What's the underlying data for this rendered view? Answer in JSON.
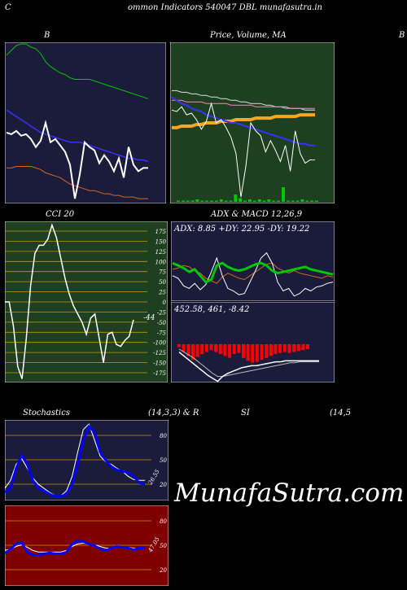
{
  "page": {
    "top_left": "C",
    "title": "ommon  Indicators 540047 DBL  munafasutra.in",
    "watermark": "MunafaSutra.com"
  },
  "chart_data": [
    {
      "id": "bb",
      "type": "line",
      "title": "B",
      "colors": {
        "bg": "#1b1b3c",
        "upper": "#00c800",
        "middle": "#3333ff",
        "lower": "#d2691e",
        "price": "#ffffff"
      },
      "series": [
        {
          "values": [
            92,
            95,
            98,
            99,
            99,
            97,
            96,
            93,
            88,
            85,
            83,
            81,
            80,
            78,
            77,
            77,
            77,
            77,
            76,
            75,
            74,
            73,
            72,
            71,
            70,
            69,
            68,
            67,
            66,
            65
          ]
        },
        {
          "values": [
            58,
            56,
            54,
            52,
            50,
            48,
            46,
            44,
            43,
            42,
            41,
            40,
            39,
            38,
            38,
            38,
            37,
            36,
            35,
            34,
            33,
            32,
            31,
            30,
            29,
            28,
            28,
            27,
            27,
            26
          ]
        },
        {
          "values": [
            22,
            22,
            23,
            23,
            23,
            23,
            22,
            21,
            19,
            18,
            17,
            16,
            14,
            12,
            11,
            10,
            9,
            8,
            8,
            7,
            6,
            6,
            5,
            5,
            4,
            4,
            4,
            3,
            3,
            3
          ]
        },
        {
          "values": [
            44,
            43,
            45,
            42,
            43,
            40,
            35,
            39,
            50,
            38,
            40,
            36,
            32,
            24,
            3,
            18,
            38,
            35,
            33,
            25,
            30,
            26,
            20,
            28,
            16,
            35,
            24,
            20,
            22,
            22
          ]
        }
      ]
    },
    {
      "id": "price",
      "type": "line",
      "title": "Price,  Volume,  MA",
      "colors": {
        "bg": "#1f4020",
        "price": "#ffffff",
        "ma_blue": "#3333ff",
        "ma_orange": "#f5a623",
        "ma_white": "#dddddd",
        "ma_pink": "#ff80c0",
        "volume": "#00c800"
      },
      "series": [
        {
          "values": [
            58,
            57,
            60,
            55,
            56,
            52,
            46,
            51,
            62,
            50,
            52,
            47,
            41,
            31,
            4,
            23,
            50,
            45,
            42,
            32,
            39,
            33,
            26,
            36,
            20,
            45,
            31,
            25,
            27,
            27
          ]
        },
        {
          "values": [
            66,
            64,
            62,
            61,
            59,
            58,
            57,
            55,
            54,
            53,
            52,
            51,
            50,
            50,
            49,
            48,
            47,
            46,
            45,
            44,
            43,
            42,
            41,
            40,
            39,
            38,
            37,
            37,
            36,
            36
          ]
        },
        {
          "values": [
            47,
            47,
            48,
            48,
            48,
            49,
            49,
            50,
            50,
            50,
            51,
            51,
            51,
            52,
            52,
            52,
            52,
            53,
            53,
            53,
            53,
            54,
            54,
            54,
            54,
            54,
            55,
            55,
            55,
            55
          ]
        },
        {
          "values": [
            70,
            70,
            69,
            69,
            68,
            68,
            67,
            67,
            66,
            66,
            65,
            65,
            64,
            64,
            63,
            63,
            62,
            62,
            62,
            61,
            61,
            60,
            60,
            60,
            59,
            59,
            59,
            58,
            58,
            58
          ]
        },
        {
          "values": [
            64,
            64,
            64,
            63,
            63,
            63,
            63,
            62,
            62,
            62,
            62,
            62,
            61,
            61,
            61,
            61,
            61,
            60,
            60,
            60,
            60,
            60,
            60,
            59,
            59,
            59,
            59,
            59,
            59,
            59
          ]
        }
      ],
      "volume": [
        1,
        1,
        1,
        1,
        2,
        1,
        1,
        1,
        1,
        2,
        1,
        1,
        6,
        3,
        1,
        2,
        1,
        2,
        1,
        2,
        1,
        1,
        12,
        1,
        1,
        1,
        2,
        1,
        1,
        1
      ]
    },
    {
      "id": "cci",
      "type": "line",
      "title": "CCI 20",
      "last_value": "-44",
      "colors": {
        "bg": "#1f4020",
        "grid": "#c89600",
        "line": "#ffffff"
      },
      "y_ticks": [
        175,
        150,
        125,
        100,
        75,
        50,
        25,
        0,
        -25,
        -50,
        -75,
        -100,
        -125,
        -150,
        -175
      ],
      "ylim": [
        -175,
        175
      ],
      "values": [
        0,
        0,
        -60,
        -160,
        -190,
        -90,
        40,
        120,
        140,
        140,
        155,
        190,
        160,
        110,
        60,
        20,
        -10,
        -30,
        -50,
        -80,
        -40,
        -30,
        -90,
        -150,
        -80,
        -75,
        -105,
        -110,
        -95,
        -85,
        -44
      ]
    },
    {
      "id": "adx",
      "type": "line",
      "title": "ADX  & MACD 12,26,9",
      "label": "ADX: 8.85  +DY: 22.95  -DY: 19.22",
      "colors": {
        "bg": "#1b1b3c",
        "adx": "#00c800",
        "plus_dy": "#ffffff",
        "minus_dy": "#d2691e"
      },
      "series": [
        {
          "values": [
            30,
            28,
            26,
            23,
            25,
            20,
            15,
            17,
            28,
            30,
            27,
            25,
            24,
            25,
            27,
            29,
            30,
            28,
            24,
            22,
            23,
            24,
            25,
            26,
            27,
            25,
            24,
            23,
            22,
            21
          ]
        },
        {
          "values": [
            20,
            18,
            12,
            10,
            14,
            9,
            13,
            23,
            34,
            20,
            10,
            8,
            5,
            6,
            15,
            24,
            34,
            38,
            30,
            15,
            8,
            10,
            4,
            6,
            10,
            8,
            11,
            12,
            14,
            15
          ]
        },
        {
          "values": [
            25,
            26,
            28,
            27,
            24,
            22,
            18,
            16,
            14,
            19,
            22,
            20,
            18,
            17,
            20,
            23,
            26,
            29,
            30,
            26,
            24,
            22,
            24,
            22,
            21,
            20,
            19,
            18,
            20,
            19
          ]
        }
      ]
    },
    {
      "id": "macd",
      "type": "bar",
      "label": "452.58,  461,  -8.42",
      "colors": {
        "bg": "#1b1b3c",
        "bars": "#ff0000",
        "macd": "#ffffff",
        "signal": "#bbbbbb"
      },
      "histogram": [
        -3,
        -8,
        -12,
        -16,
        -13,
        -10,
        -8,
        -6,
        -8,
        -10,
        -12,
        -14,
        -10,
        -9,
        -14,
        -17,
        -19,
        -18,
        -16,
        -14,
        -12,
        -10,
        -9,
        -8,
        -9,
        -8,
        -7,
        -6,
        -5
      ],
      "macd": [
        -8,
        -12,
        -16,
        -20,
        -24,
        -28,
        -32,
        -35,
        -38,
        -33,
        -30,
        -28,
        -26,
        -24,
        -23,
        -22,
        -22,
        -21,
        -20,
        -19,
        -18,
        -18,
        -17,
        -17,
        -17,
        -17,
        -17,
        -17,
        -17,
        -17
      ],
      "signal": [
        -5,
        -8,
        -11,
        -14,
        -18,
        -22,
        -26,
        -30,
        -33,
        -33,
        -32,
        -31,
        -30,
        -29,
        -28,
        -27,
        -26,
        -25,
        -24,
        -23,
        -22,
        -21,
        -20,
        -19,
        -19,
        -18,
        -18,
        -18,
        -18,
        -18
      ]
    },
    {
      "id": "stoch",
      "type": "line",
      "title": "Stochastics",
      "title_params": "(14,3,3) & R",
      "last_value": "26.55",
      "colors": {
        "bg": "#1b1b3c",
        "grid": "#c89600",
        "k": "#0000ff",
        "d": "#ffffff"
      },
      "y_ticks": [
        80,
        50,
        20
      ],
      "ylim": [
        0,
        100
      ],
      "series": [
        {
          "values": [
            10,
            15,
            40,
            56,
            45,
            25,
            15,
            12,
            8,
            5,
            5,
            8,
            20,
            45,
            75,
            92,
            85,
            60,
            50,
            42,
            38,
            36,
            35,
            30,
            22,
            20
          ]
        },
        {
          "values": [
            15,
            25,
            45,
            52,
            40,
            28,
            20,
            15,
            10,
            6,
            6,
            12,
            30,
            60,
            88,
            95,
            75,
            55,
            48,
            45,
            40,
            36,
            30,
            26,
            25,
            25
          ]
        }
      ]
    },
    {
      "id": "rsi",
      "type": "line",
      "title": "SI",
      "title_params": "(14,5",
      "last_value": "47.05",
      "colors": {
        "bg": "#800000",
        "grid": "#c89600",
        "rsi": "#0000ff",
        "signal": "#ffffff"
      },
      "y_ticks": [
        80,
        50,
        20
      ],
      "ylim": [
        0,
        100
      ],
      "series": [
        {
          "values": [
            40,
            46,
            52,
            54,
            42,
            38,
            38,
            40,
            41,
            40,
            40,
            42,
            52,
            56,
            55,
            52,
            50,
            46,
            44,
            47,
            49,
            48,
            47,
            45,
            47,
            47
          ]
        },
        {
          "values": [
            44,
            46,
            49,
            51,
            48,
            44,
            42,
            42,
            42,
            42,
            42,
            44,
            49,
            52,
            53,
            52,
            51,
            49,
            47,
            47,
            48,
            48,
            48,
            47,
            47,
            47
          ]
        }
      ]
    }
  ]
}
